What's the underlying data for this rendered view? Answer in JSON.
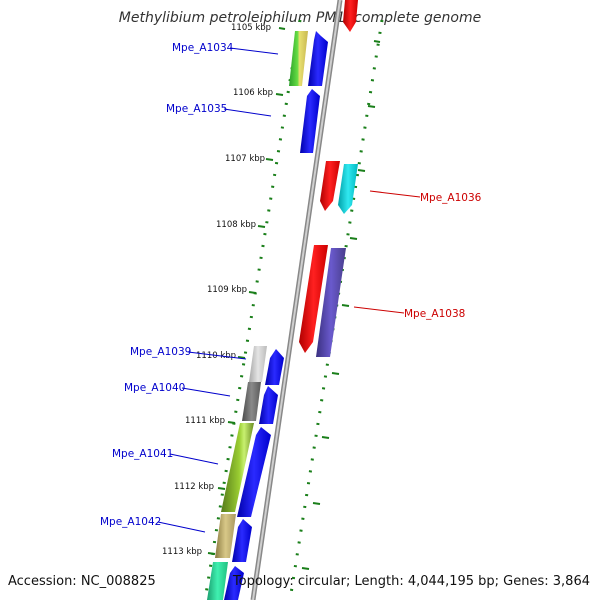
{
  "title": "Methylibium petroleiphilum PM1, complete genome",
  "footer": {
    "accession": "Accession: NC_008825",
    "summary": "Topology: circular; Length: 4,044,195 bp; Genes: 3,864"
  },
  "ticks": [
    "1105 kbp",
    "1106 kbp",
    "1107 kbp",
    "1108 kbp",
    "1109 kbp",
    "1110 kbp",
    "1111 kbp",
    "1112 kbp",
    "1113 kbp"
  ],
  "colors": {
    "forward_label": "#0000cc",
    "reverse_label": "#cc0000",
    "backbone": "#9a9a9a",
    "tick": "#1a7f1a"
  },
  "genes": [
    {
      "name": "Mpe_A1034",
      "strand": "forward"
    },
    {
      "name": "Mpe_A1035",
      "strand": "forward"
    },
    {
      "name": "Mpe_A1036",
      "strand": "reverse"
    },
    {
      "name": "Mpe_A1038",
      "strand": "reverse"
    },
    {
      "name": "Mpe_A1039",
      "strand": "forward"
    },
    {
      "name": "Mpe_A1040",
      "strand": "forward"
    },
    {
      "name": "Mpe_A1041",
      "strand": "forward"
    },
    {
      "name": "Mpe_A1042",
      "strand": "forward"
    }
  ]
}
